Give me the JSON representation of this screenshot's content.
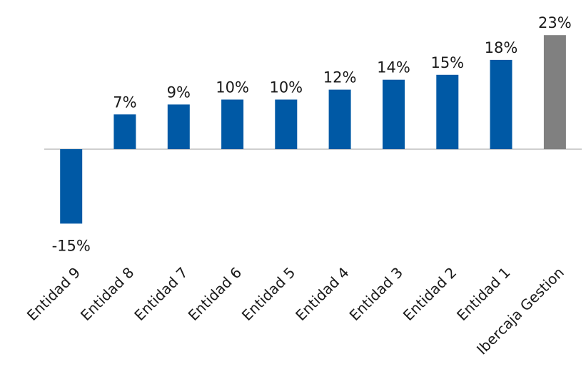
{
  "chart_data": {
    "type": "bar",
    "title": "",
    "xlabel": "",
    "ylabel": "",
    "categories": [
      "Entidad 9",
      "Entidad 8",
      "Entidad 7",
      "Entidad 6",
      "Entidad 5",
      "Entidad 4",
      "Entidad 3",
      "Entidad 2",
      "Entidad 1",
      "Ibercaja Gestion"
    ],
    "values": [
      -15,
      7,
      9,
      10,
      10,
      12,
      14,
      15,
      18,
      23
    ],
    "data_labels": [
      "-15%",
      "7%",
      "9%",
      "10%",
      "10%",
      "12%",
      "14%",
      "15%",
      "18%",
      "23%"
    ],
    "unit": "%",
    "ylim": [
      -15,
      23
    ],
    "grid": false,
    "legend": "none",
    "colors": {
      "default_bar": "#0059A5",
      "highlight_bar": "#808080",
      "axis_line": "#BFBFBF"
    },
    "highlight_category": "Ibercaja Gestion"
  }
}
